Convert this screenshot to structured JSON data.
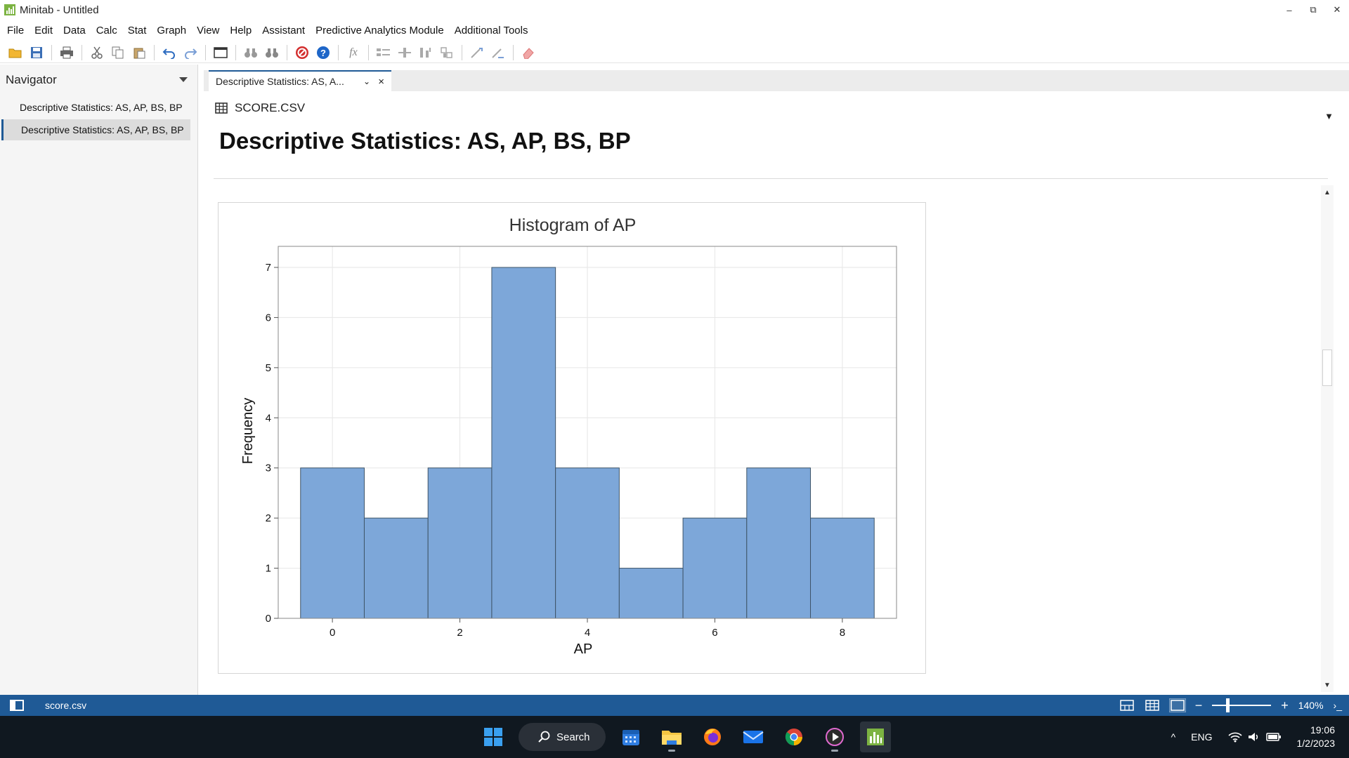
{
  "window": {
    "title": "Minitab - Untitled",
    "minimize": "–",
    "restore": "⧉",
    "close": "✕"
  },
  "menu": [
    "File",
    "Edit",
    "Data",
    "Calc",
    "Stat",
    "Graph",
    "View",
    "Help",
    "Assistant",
    "Predictive Analytics Module",
    "Additional Tools"
  ],
  "toolbar": {
    "icons": [
      "open-icon",
      "save-icon",
      "print-icon",
      "cut-icon",
      "copy-icon",
      "paste-icon",
      "undo-icon",
      "redo-icon",
      "window-icon",
      "find-icon",
      "replace-icon",
      "cancel-icon",
      "help-icon",
      "formula-icon",
      "row-icon",
      "column-icon",
      "insert-icon",
      "move-icon",
      "brush-icon",
      "link-icon",
      "eraser-icon"
    ],
    "formula_label": "fx"
  },
  "navigator": {
    "title": "Navigator",
    "items": [
      {
        "label": "Descriptive Statistics: AS, AP, BS, BP",
        "active": false
      },
      {
        "label": "Descriptive Statistics: AS, AP, BS, BP",
        "active": true
      }
    ]
  },
  "tab": {
    "label": "Descriptive Statistics: AS, A...",
    "chevron": "⌄",
    "close": "×"
  },
  "content": {
    "worksheet_label": "SCORE.CSV",
    "menu_arrow": "▼",
    "title": "Descriptive Statistics: AS, AP, BS, BP"
  },
  "chart_data": {
    "type": "bar",
    "title": "Histogram of AP",
    "xlabel": "AP",
    "ylabel": "Frequency",
    "bin_centers": [
      0,
      1,
      2,
      3,
      4,
      5,
      6,
      7,
      8
    ],
    "bin_width": 1,
    "values": [
      3,
      2,
      3,
      7,
      3,
      1,
      2,
      3,
      2
    ],
    "xticks": [
      0,
      2,
      4,
      6,
      8
    ],
    "yticks": [
      0,
      1,
      2,
      3,
      4,
      5,
      6,
      7
    ],
    "xlim": [
      -0.85,
      8.85
    ],
    "ylim": [
      0,
      7.42
    ],
    "grid": true,
    "bar_color": "#7da7d9",
    "bar_edge_color": "#3e5468"
  },
  "status": {
    "file": "score.csv",
    "zoom": "140%",
    "minus": "−",
    "plus": "+",
    "cmd": "›_"
  },
  "taskbar": {
    "search_label": "Search",
    "apps": [
      "start-icon",
      "calendar-icon",
      "file-explorer-icon",
      "firefox-icon",
      "mail-icon",
      "chrome-icon",
      "media-player-icon",
      "minitab-icon"
    ],
    "tray": {
      "chevron": "^",
      "lang": "ENG",
      "time": "19:06",
      "date": "1/2/2023"
    }
  },
  "colors": {
    "accent": "#1f5a96",
    "taskbar": "#101820",
    "bar": "#7da7d9"
  }
}
